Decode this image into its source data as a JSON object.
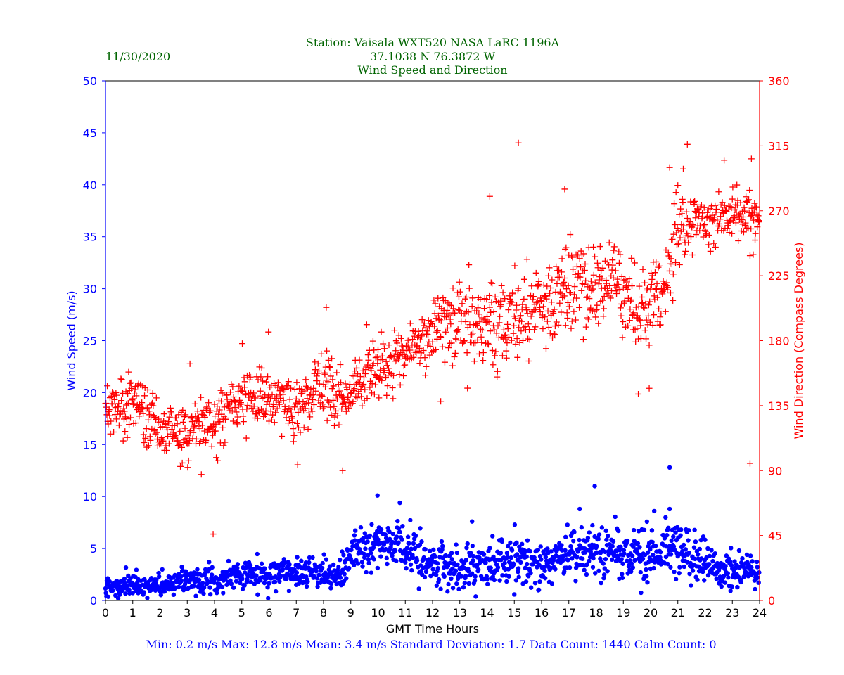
{
  "date": "11/30/2020",
  "title_lines": [
    "Station:  Vaisala WXT520  NASA LaRC 1196A",
    "37.1038 N 76.3872 W",
    "Wind Speed and Direction"
  ],
  "footer": "Min: 0.2 m/s   Max: 12.8 m/s   Mean: 3.4 m/s  Standard Deviation: 1.7  Data Count: 1440  Calm Count:  0",
  "colors": {
    "speed": "#0000ff",
    "direction": "#ff0000",
    "title": "#006400",
    "axis": "#000000"
  },
  "chart_data": {
    "type": "scatter",
    "title": "Wind Speed and Direction",
    "xlabel": "GMT Time Hours",
    "ylabel_left": "Wind Speed (m/s)",
    "ylabel_right": "Wind Direction (Compass Degrees)",
    "xlim": [
      0,
      24
    ],
    "ylim_left": [
      0,
      50
    ],
    "ylim_right": [
      0,
      360
    ],
    "x_ticks": [
      "0",
      "1",
      "2",
      "3",
      "4",
      "5",
      "6",
      "7",
      "8",
      "9",
      "10",
      "11",
      "12",
      "13",
      "14",
      "15",
      "16",
      "17",
      "18",
      "19",
      "20",
      "21",
      "22",
      "23",
      "24"
    ],
    "y_left_ticks": [
      "0",
      "5",
      "10",
      "15",
      "20",
      "25",
      "30",
      "35",
      "40",
      "45",
      "50"
    ],
    "y_right_ticks": [
      "0",
      "45",
      "90",
      "135",
      "180",
      "225",
      "270",
      "315",
      "360"
    ],
    "series": [
      {
        "name": "Wind Speed (m/s)",
        "axis": "left",
        "marker": "dot",
        "sampled_every_hours": 0.5,
        "x": [
          0,
          0.5,
          1,
          1.5,
          2,
          2.5,
          3,
          3.5,
          4,
          4.5,
          5,
          5.5,
          6,
          6.5,
          7,
          7.5,
          8,
          8.5,
          9,
          9.5,
          10,
          10.5,
          11,
          11.5,
          12,
          12.5,
          13,
          13.5,
          14,
          14.5,
          15,
          15.5,
          16,
          16.5,
          17,
          17.5,
          18,
          18.5,
          19,
          19.5,
          20,
          20.5,
          21,
          21.5,
          22,
          22.5,
          23,
          23.5,
          24
        ],
        "values": [
          1.6,
          1.6,
          1.5,
          1.3,
          1.6,
          1.8,
          2.0,
          2.0,
          2.0,
          2.2,
          2.4,
          2.5,
          2.6,
          2.6,
          2.6,
          2.8,
          2.8,
          2.2,
          4.3,
          5.0,
          5.4,
          5.3,
          4.8,
          4.4,
          3.5,
          3.0,
          3.0,
          3.2,
          3.0,
          3.6,
          4.0,
          3.8,
          3.4,
          3.8,
          4.5,
          4.8,
          4.8,
          4.6,
          4.4,
          4.6,
          4.4,
          4.8,
          4.9,
          4.4,
          3.7,
          3.0,
          2.8,
          2.8,
          2.6
        ],
        "spread": [
          0.5,
          0.6,
          0.5,
          0.5,
          0.5,
          0.6,
          0.6,
          0.7,
          0.7,
          0.7,
          0.7,
          0.7,
          0.7,
          0.7,
          0.7,
          0.7,
          0.8,
          0.8,
          1.0,
          1.1,
          1.2,
          1.2,
          1.2,
          1.1,
          1.0,
          1.0,
          1.0,
          1.0,
          1.0,
          1.0,
          1.1,
          1.1,
          1.1,
          1.1,
          1.2,
          1.2,
          1.2,
          1.1,
          1.1,
          1.2,
          1.2,
          1.3,
          1.3,
          1.1,
          0.9,
          0.8,
          0.8,
          0.8,
          0.8
        ],
        "notable_points": [
          {
            "x": 9.98,
            "y": 10.1
          },
          {
            "x": 10.8,
            "y": 9.4
          },
          {
            "x": 17.95,
            "y": 11.0
          },
          {
            "x": 20.7,
            "y": 12.8
          },
          {
            "x": 20.7,
            "y": 8.8
          },
          {
            "x": 17.4,
            "y": 8.8
          },
          {
            "x": 13.45,
            "y": 7.6
          }
        ]
      },
      {
        "name": "Wind Direction (Compass Degrees)",
        "axis": "right",
        "marker": "plus",
        "sampled_every_hours": 0.5,
        "x": [
          0,
          0.5,
          1,
          1.5,
          2,
          2.5,
          3,
          3.5,
          4,
          4.5,
          5,
          5.5,
          6,
          6.5,
          7,
          7.5,
          8,
          8.5,
          9,
          9.5,
          10,
          10.5,
          11,
          11.5,
          12,
          12.5,
          13,
          13.5,
          14,
          14.5,
          15,
          15.5,
          16,
          16.5,
          17,
          17.5,
          18,
          18.5,
          19,
          19.5,
          20,
          20.5,
          21,
          21.5,
          22,
          22.5,
          23,
          23.5,
          24
        ],
        "values": [
          130,
          135,
          140,
          130,
          120,
          120,
          115,
          122,
          125,
          132,
          140,
          140,
          140,
          138,
          130,
          140,
          150,
          140,
          145,
          155,
          160,
          165,
          168,
          175,
          185,
          195,
          190,
          192,
          190,
          190,
          198,
          200,
          200,
          210,
          218,
          220,
          210,
          220,
          210,
          205,
          210,
          215,
          255,
          260,
          265,
          265,
          268,
          270,
          268
        ],
        "spread": [
          8,
          9,
          10,
          9,
          8,
          9,
          10,
          10,
          10,
          10,
          10,
          10,
          10,
          10,
          10,
          10,
          12,
          12,
          10,
          10,
          10,
          10,
          10,
          10,
          12,
          14,
          14,
          14,
          14,
          14,
          14,
          14,
          14,
          14,
          15,
          15,
          15,
          14,
          14,
          14,
          14,
          15,
          15,
          10,
          10,
          10,
          10,
          10,
          10
        ],
        "notable_points": [
          {
            "x": 15.15,
            "y": 317
          },
          {
            "x": 21.35,
            "y": 316
          },
          {
            "x": 23.7,
            "y": 306
          },
          {
            "x": 22.7,
            "y": 305
          },
          {
            "x": 20.7,
            "y": 300
          },
          {
            "x": 21.2,
            "y": 299
          },
          {
            "x": 14.1,
            "y": 280
          },
          {
            "x": 16.85,
            "y": 285
          },
          {
            "x": 8.1,
            "y": 203
          },
          {
            "x": 8.7,
            "y": 90
          },
          {
            "x": 23.65,
            "y": 95
          },
          {
            "x": 3.95,
            "y": 46
          },
          {
            "x": 7.05,
            "y": 94
          },
          {
            "x": 3.1,
            "y": 164
          },
          {
            "x": 5.02,
            "y": 178
          },
          {
            "x": 5.98,
            "y": 186
          },
          {
            "x": 12.3,
            "y": 138
          },
          {
            "x": 19.95,
            "y": 147
          },
          {
            "x": 19.55,
            "y": 143
          }
        ]
      }
    ]
  }
}
